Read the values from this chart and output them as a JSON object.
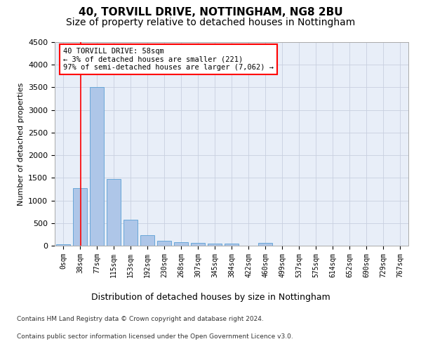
{
  "title1": "40, TORVILL DRIVE, NOTTINGHAM, NG8 2BU",
  "title2": "Size of property relative to detached houses in Nottingham",
  "xlabel": "Distribution of detached houses by size in Nottingham",
  "ylabel": "Number of detached properties",
  "bar_labels": [
    "0sqm",
    "38sqm",
    "77sqm",
    "115sqm",
    "153sqm",
    "192sqm",
    "230sqm",
    "268sqm",
    "307sqm",
    "345sqm",
    "384sqm",
    "422sqm",
    "460sqm",
    "499sqm",
    "537sqm",
    "575sqm",
    "614sqm",
    "652sqm",
    "690sqm",
    "729sqm",
    "767sqm"
  ],
  "bar_values": [
    30,
    1270,
    3500,
    1480,
    580,
    240,
    115,
    80,
    55,
    40,
    50,
    0,
    55,
    0,
    0,
    0,
    0,
    0,
    0,
    0,
    0
  ],
  "bar_color": "#aec6e8",
  "bar_edge_color": "#5a9fd4",
  "annotation_line1": "40 TORVILL DRIVE: 58sqm",
  "annotation_line2": "← 3% of detached houses are smaller (221)",
  "annotation_line3": "97% of semi-detached houses are larger (7,062) →",
  "ylim": [
    0,
    4500
  ],
  "yticks": [
    0,
    500,
    1000,
    1500,
    2000,
    2500,
    3000,
    3500,
    4000,
    4500
  ],
  "footer1": "Contains HM Land Registry data © Crown copyright and database right 2024.",
  "footer2": "Contains public sector information licensed under the Open Government Licence v3.0.",
  "bg_color": "#e8eef8",
  "grid_color": "#c8d0e0",
  "title_fontsize1": 11,
  "title_fontsize2": 10
}
